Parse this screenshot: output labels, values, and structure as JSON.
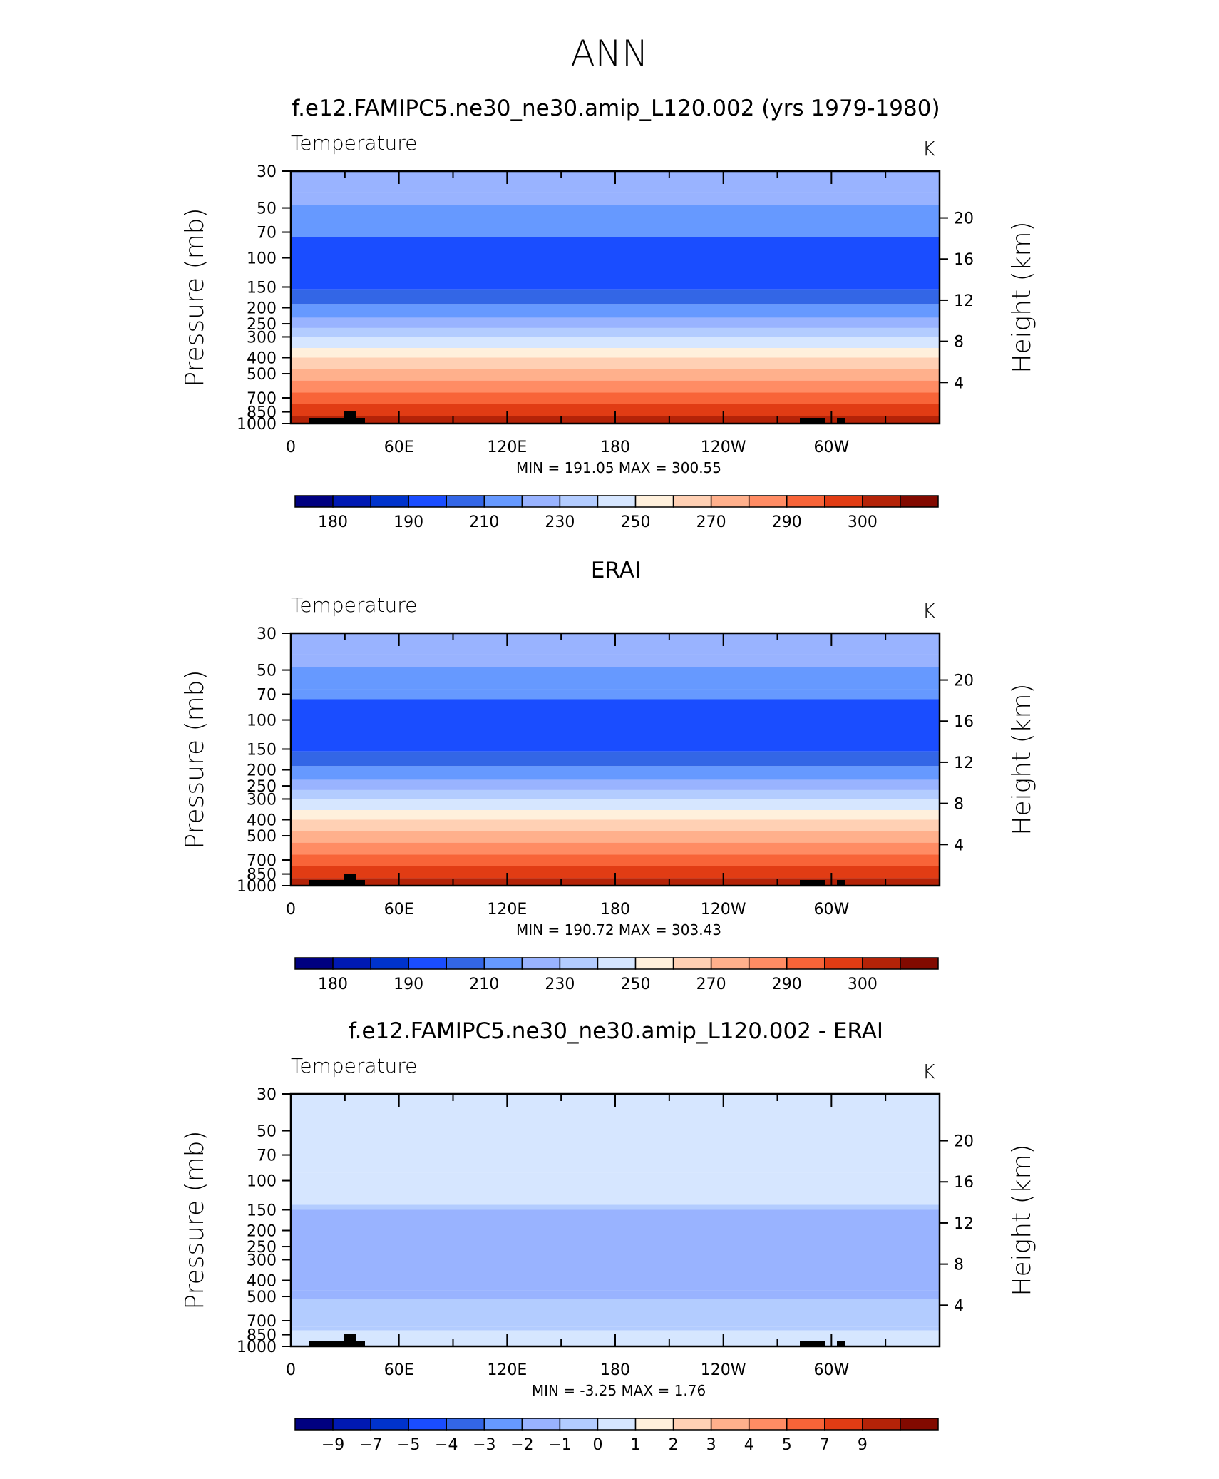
{
  "page_title": "ANN",
  "colors": {
    "temp_scale": [
      "#000080",
      "#0019b3",
      "#0033cc",
      "#1a4dff",
      "#3366e6",
      "#6699ff",
      "#99b3ff",
      "#b3ccff",
      "#d6e6ff",
      "#fff0dc",
      "#ffd0b4",
      "#ffb08c",
      "#ff8c64",
      "#f86438",
      "#e13c14",
      "#b42308",
      "#820a00"
    ],
    "diff_scale": [
      "#000080",
      "#0019b3",
      "#0033cc",
      "#1a4dff",
      "#3366e6",
      "#6699ff",
      "#99b3ff",
      "#b3ccff",
      "#d6e6ff",
      "#fff0dc",
      "#ffd0b4",
      "#ffb08c",
      "#ff8c64",
      "#f86438",
      "#e13c14",
      "#b42308",
      "#820a00"
    ]
  },
  "chart_data": [
    {
      "type": "heatmap",
      "title": "f.e12.FAMIPC5.ne30_ne30.amip_L120.002 (yrs 1979-1980)",
      "left_label": "Temperature",
      "right_label": "K",
      "ylabel": "Pressure  (mb)",
      "y2label": "Height  (km)",
      "x_ticks": [
        "0",
        "60E",
        "120E",
        "180",
        "120W",
        "60W"
      ],
      "y_ticks": [
        "30",
        "50",
        "70",
        "100",
        "150",
        "200",
        "250",
        "300",
        "400",
        "500",
        "700",
        "850",
        "1000"
      ],
      "y2_ticks": [
        "20",
        "16",
        "12",
        "8",
        "4"
      ],
      "stats_text": "MIN  =  191.05   MAX  =  300.55",
      "min": 191.05,
      "max": 300.55,
      "colorbar_labels": [
        "180",
        "190",
        "210",
        "230",
        "250",
        "270",
        "290",
        "300"
      ],
      "colorbar_scale": "temp_scale",
      "profile": [
        {
          "p": 30,
          "level": 6
        },
        {
          "p": 40,
          "level": 6
        },
        {
          "p": 48,
          "level": 5
        },
        {
          "p": 65,
          "level": 5
        },
        {
          "p": 75,
          "level": 3
        },
        {
          "p": 140,
          "level": 3
        },
        {
          "p": 155,
          "level": 4
        },
        {
          "p": 190,
          "level": 5
        },
        {
          "p": 230,
          "level": 6
        },
        {
          "p": 265,
          "level": 7
        },
        {
          "p": 300,
          "level": 8
        },
        {
          "p": 350,
          "level": 9
        },
        {
          "p": 400,
          "level": 10
        },
        {
          "p": 470,
          "level": 11
        },
        {
          "p": 550,
          "level": 12
        },
        {
          "p": 650,
          "level": 13
        },
        {
          "p": 760,
          "level": 14
        },
        {
          "p": 900,
          "level": 15
        },
        {
          "p": 1000,
          "level": 16
        }
      ]
    },
    {
      "type": "heatmap",
      "title": "ERAI",
      "left_label": "Temperature",
      "right_label": "K",
      "ylabel": "Pressure  (mb)",
      "y2label": "Height  (km)",
      "x_ticks": [
        "0",
        "60E",
        "120E",
        "180",
        "120W",
        "60W"
      ],
      "y_ticks": [
        "30",
        "50",
        "70",
        "100",
        "150",
        "200",
        "250",
        "300",
        "400",
        "500",
        "700",
        "850",
        "1000"
      ],
      "y2_ticks": [
        "20",
        "16",
        "12",
        "8",
        "4"
      ],
      "stats_text": "MIN  =  190.72   MAX  =  303.43",
      "min": 190.72,
      "max": 303.43,
      "colorbar_labels": [
        "180",
        "190",
        "210",
        "230",
        "250",
        "270",
        "290",
        "300"
      ],
      "colorbar_scale": "temp_scale",
      "profile": [
        {
          "p": 30,
          "level": 6
        },
        {
          "p": 40,
          "level": 6
        },
        {
          "p": 48,
          "level": 5
        },
        {
          "p": 65,
          "level": 5
        },
        {
          "p": 75,
          "level": 3
        },
        {
          "p": 140,
          "level": 3
        },
        {
          "p": 155,
          "level": 4
        },
        {
          "p": 190,
          "level": 5
        },
        {
          "p": 230,
          "level": 6
        },
        {
          "p": 265,
          "level": 7
        },
        {
          "p": 300,
          "level": 8
        },
        {
          "p": 350,
          "level": 9
        },
        {
          "p": 400,
          "level": 10
        },
        {
          "p": 470,
          "level": 11
        },
        {
          "p": 550,
          "level": 12
        },
        {
          "p": 650,
          "level": 13
        },
        {
          "p": 760,
          "level": 14
        },
        {
          "p": 900,
          "level": 15
        },
        {
          "p": 1000,
          "level": 16
        }
      ]
    },
    {
      "type": "heatmap",
      "title": "f.e12.FAMIPC5.ne30_ne30.amip_L120.002 - ERAI",
      "left_label": "Temperature",
      "right_label": "K",
      "ylabel": "Pressure  (mb)",
      "y2label": "Height  (km)",
      "x_ticks": [
        "0",
        "60E",
        "120E",
        "180",
        "120W",
        "60W"
      ],
      "y_ticks": [
        "30",
        "50",
        "70",
        "100",
        "150",
        "200",
        "250",
        "300",
        "400",
        "500",
        "700",
        "850",
        "1000"
      ],
      "y2_ticks": [
        "20",
        "16",
        "12",
        "8",
        "4"
      ],
      "stats_text": "MIN  =    -3.25   MAX  =      1.76",
      "min": -3.25,
      "max": 1.76,
      "colorbar_labels": [
        "-9",
        "-7",
        "-5",
        "-4",
        "-3",
        "-2",
        "-1",
        "0",
        "1",
        "2",
        "3",
        "4",
        "5",
        "7",
        "9"
      ],
      "colorbar_scale": "diff_scale",
      "profile": [
        {
          "p": 30,
          "level": 8
        },
        {
          "p": 90,
          "level": 8
        },
        {
          "p": 125,
          "level": 8
        },
        {
          "p": 140,
          "level": 7
        },
        {
          "p": 150,
          "level": 6
        },
        {
          "p": 460,
          "level": 6
        },
        {
          "p": 520,
          "level": 7
        },
        {
          "p": 760,
          "level": 7
        },
        {
          "p": 800,
          "level": 8
        },
        {
          "p": 1000,
          "level": 8
        }
      ]
    }
  ]
}
